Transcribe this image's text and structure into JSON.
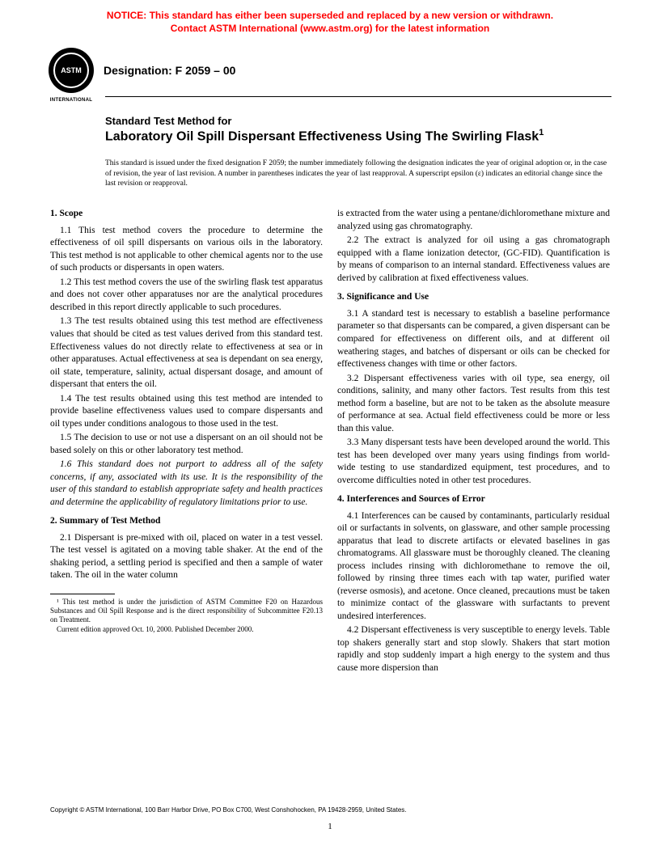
{
  "notice": {
    "line1": "NOTICE: This standard has either been superseded and replaced by a new version or withdrawn.",
    "line2": "Contact ASTM International (www.astm.org) for the latest information"
  },
  "logo": {
    "text": "ASTM",
    "subtext": "INTERNATIONAL"
  },
  "designation": "Designation: F 2059 – 00",
  "title": {
    "pre": "Standard Test Method for",
    "main": "Laboratory Oil Spill Dispersant Effectiveness Using The Swirling Flask",
    "sup": "1"
  },
  "issueNote": "This standard is issued under the fixed designation F 2059; the number immediately following the designation indicates the year of original adoption or, in the case of revision, the year of last revision. A number in parentheses indicates the year of last reapproval. A superscript epsilon (ε) indicates an editorial change since the last revision or reapproval.",
  "sections": {
    "s1": {
      "head": "1. Scope",
      "p1": "1.1 This test method covers the procedure to determine the effectiveness of oil spill dispersants on various oils in the laboratory. This test method is not applicable to other chemical agents nor to the use of such products or dispersants in open waters.",
      "p2": "1.2 This test method covers the use of the swirling flask test apparatus and does not cover other apparatuses nor are the analytical procedures described in this report directly applicable to such procedures.",
      "p3": "1.3 The test results obtained using this test method are effectiveness values that should be cited as test values derived from this standard test. Effectiveness values do not directly relate to effectiveness at sea or in other apparatuses. Actual effectiveness at sea is dependant on sea energy, oil state, temperature, salinity, actual dispersant dosage, and amount of dispersant that enters the oil.",
      "p4": "1.4 The test results obtained using this test method are intended to provide baseline effectiveness values used to compare dispersants and oil types under conditions analogous to those used in the test.",
      "p5": "1.5 The decision to use or not use a dispersant on an oil should not be based solely on this or other laboratory test method.",
      "p6": "1.6 This standard does not purport to address all of the safety concerns, if any, associated with its use. It is the responsibility of the user of this standard to establish appropriate safety and health practices and determine the applicability of regulatory limitations prior to use."
    },
    "s2": {
      "head": "2. Summary of Test Method",
      "p1": "2.1 Dispersant is pre-mixed with oil, placed on water in a test vessel. The test vessel is agitated on a moving table shaker. At the end of the shaking period, a settling period is specified and then a sample of water taken. The oil in the water column",
      "p1b": "is extracted from the water using a pentane/dichloromethane mixture and analyzed using gas chromatography.",
      "p2": "2.2 The extract is analyzed for oil using a gas chromatograph equipped with a flame ionization detector, (GC-FID). Quantification is by means of comparison to an internal standard. Effectiveness values are derived by calibration at fixed effectiveness values."
    },
    "s3": {
      "head": "3. Significance and Use",
      "p1": "3.1 A standard test is necessary to establish a baseline performance parameter so that dispersants can be compared, a given dispersant can be compared for effectiveness on different oils, and at different oil weathering stages, and batches of dispersant or oils can be checked for effectiveness changes with time or other factors.",
      "p2": "3.2 Dispersant effectiveness varies with oil type, sea energy, oil conditions, salinity, and many other factors. Test results from this test method form a baseline, but are not to be taken as the absolute measure of performance at sea. Actual field effectiveness could be more or less than this value.",
      "p3": "3.3 Many dispersant tests have been developed around the world. This test has been developed over many years using findings from world-wide testing to use standardized equipment, test procedures, and to overcome difficulties noted in other test procedures."
    },
    "s4": {
      "head": "4. Interferences and Sources of Error",
      "p1": "4.1 Interferences can be caused by contaminants, particularly residual oil or surfactants in solvents, on glassware, and other sample processing apparatus that lead to discrete artifacts or elevated baselines in gas chromatograms. All glassware must be thoroughly cleaned. The cleaning process includes rinsing with dichloromethane to remove the oil, followed by rinsing three times each with tap water, purified water (reverse osmosis), and acetone. Once cleaned, precautions must be taken to minimize contact of the glassware with surfactants to prevent undesired interferences.",
      "p2": "4.2 Dispersant effectiveness is very susceptible to energy levels. Table top shakers generally start and stop slowly. Shakers that start motion rapidly and stop suddenly impart a high energy to the system and thus cause more dispersion than"
    }
  },
  "footnotes": {
    "f1": "¹ This test method is under the jurisdiction of ASTM Committee F20 on Hazardous Substances and Oil Spill Response and is the direct responsibility of Subcommittee F20.13 on Treatment.",
    "f2": "Current edition approved Oct. 10, 2000. Published December 2000."
  },
  "copyright": "Copyright © ASTM International, 100 Barr Harbor Drive, PO Box C700, West Conshohocken, PA 19428-2959, United States.",
  "pageNum": "1"
}
